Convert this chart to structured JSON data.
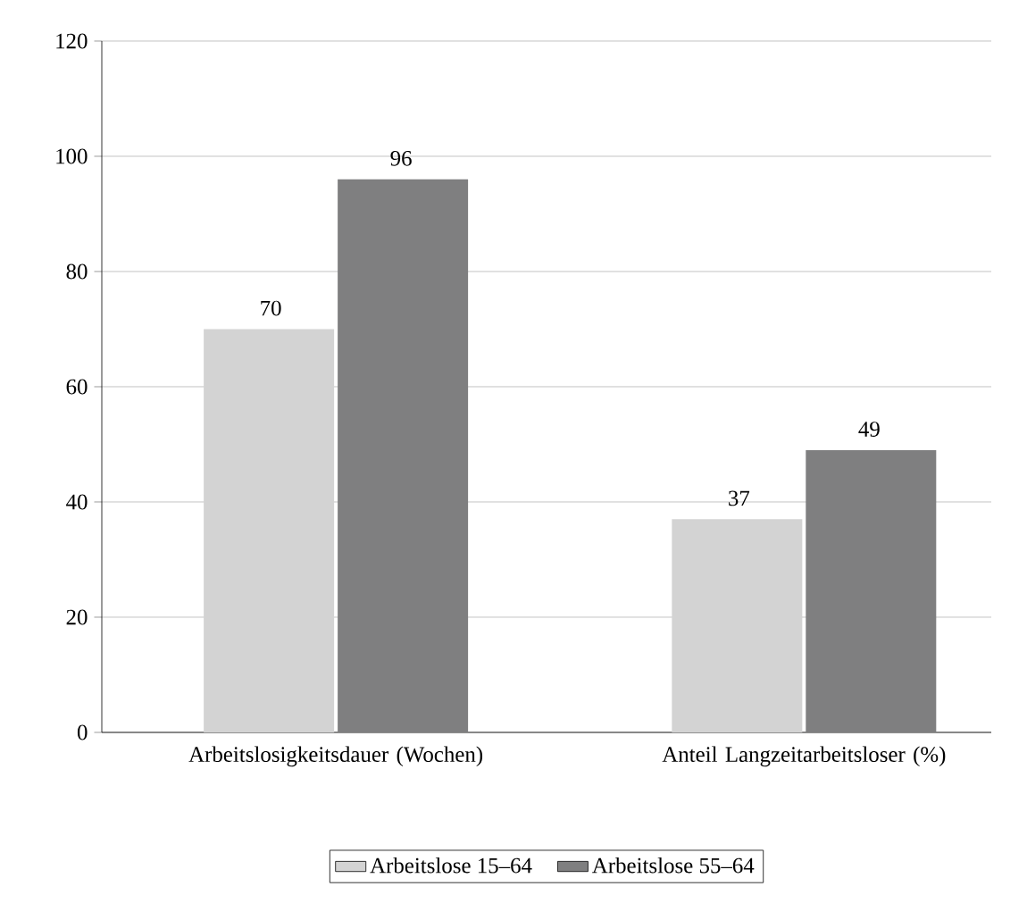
{
  "chart_data": {
    "type": "bar",
    "categories": [
      "Arbeitslosigkeitsdauer (Wochen)",
      "Anteil Langzeitarbeitsloser (%)"
    ],
    "series": [
      {
        "name": "Arbeitslose 15–64",
        "color": "#d3d3d3",
        "values": [
          70,
          37
        ]
      },
      {
        "name": "Arbeitslose 55–64",
        "color": "#7f7f80",
        "values": [
          96,
          49
        ]
      }
    ],
    "ylim": [
      0,
      120
    ],
    "yticks": [
      0,
      20,
      40,
      60,
      80,
      100,
      120
    ],
    "grid": "y",
    "legend": "bottom",
    "data_labels": true
  }
}
